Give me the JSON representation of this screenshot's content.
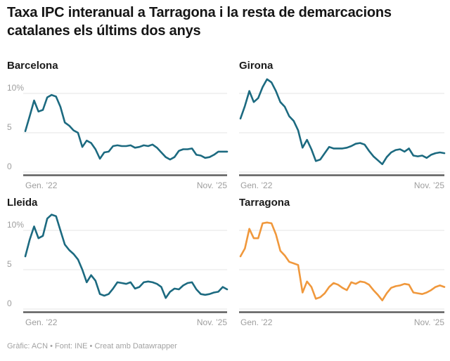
{
  "page": {
    "title": "Taxa IPC interanual a Tarragona i la resta de demarcacions catalanes els últims dos anys",
    "footer": "Gràfic: ACN • Font: INE • Creat amb Datawrapper"
  },
  "chart_data": {
    "type": "line",
    "layout": "2x2 small multiples, shared y scale",
    "title": "Taxa IPC interanual a Tarragona i la resta de demarcacions catalanes els últims dos anys",
    "x_description": "monthly values, Gener 2022 - Novembre 2025 (47 points per series)",
    "x_first_label": "Gen. ’22",
    "x_last_label": "Nov. ’25",
    "ylim": [
      0,
      12.4
    ],
    "grid": true,
    "y_ticks": [
      {
        "value": 10,
        "label": "10%"
      },
      {
        "value": 5,
        "label": "5"
      },
      {
        "value": 0,
        "label": "0"
      }
    ],
    "colors": {
      "teal": "#1c6a80",
      "orange": "#f0983c"
    },
    "panels": [
      {
        "title": "Barcelona",
        "color": "#1c6a80",
        "y_axis_labels": true,
        "values": [
          5.2,
          7.1,
          9.1,
          7.7,
          7.9,
          9.5,
          9.8,
          9.6,
          8.3,
          6.3,
          5.9,
          5.3,
          5.0,
          3.2,
          4.0,
          3.7,
          2.9,
          1.7,
          2.5,
          2.6,
          3.3,
          3.4,
          3.3,
          3.3,
          3.4,
          3.1,
          3.2,
          3.4,
          3.3,
          3.5,
          3.1,
          2.5,
          1.9,
          1.6,
          1.9,
          2.7,
          2.9,
          2.9,
          3.0,
          2.2,
          2.1,
          1.8,
          1.9,
          2.2,
          2.6,
          2.6,
          2.6
        ]
      },
      {
        "title": "Girona",
        "color": "#1c6a80",
        "y_axis_labels": false,
        "values": [
          6.8,
          8.4,
          10.3,
          8.9,
          9.4,
          10.8,
          11.8,
          11.4,
          10.3,
          8.9,
          8.3,
          7.1,
          6.5,
          5.3,
          3.1,
          4.1,
          2.9,
          1.4,
          1.6,
          2.4,
          3.2,
          3.0,
          3.0,
          3.0,
          3.1,
          3.3,
          3.6,
          3.7,
          3.5,
          2.7,
          2.0,
          1.5,
          1.0,
          1.9,
          2.5,
          2.8,
          2.9,
          2.6,
          3.0,
          2.1,
          2.0,
          2.1,
          1.8,
          2.2,
          2.4,
          2.5,
          2.4
        ]
      },
      {
        "title": "Lleida",
        "color": "#1c6a80",
        "y_axis_labels": true,
        "values": [
          6.7,
          8.8,
          10.5,
          9.0,
          9.3,
          11.5,
          12.0,
          11.8,
          10.0,
          8.2,
          7.5,
          7.0,
          6.3,
          5.0,
          3.4,
          4.3,
          3.6,
          1.9,
          1.7,
          1.9,
          2.6,
          3.4,
          3.3,
          3.2,
          3.4,
          2.6,
          2.8,
          3.4,
          3.5,
          3.4,
          3.2,
          2.8,
          1.4,
          2.2,
          2.6,
          2.5,
          3.0,
          3.3,
          3.4,
          2.5,
          1.9,
          1.8,
          1.9,
          2.1,
          2.2,
          2.8,
          2.5
        ]
      },
      {
        "title": "Tarragona",
        "color": "#f0983c",
        "y_axis_labels": false,
        "values": [
          6.7,
          7.7,
          10.2,
          9.0,
          9.0,
          10.9,
          11.0,
          10.9,
          9.5,
          7.4,
          6.8,
          6.0,
          5.8,
          5.6,
          2.1,
          3.5,
          2.8,
          1.3,
          1.5,
          2.0,
          2.8,
          3.3,
          3.1,
          2.7,
          2.4,
          3.4,
          3.2,
          3.5,
          3.4,
          3.1,
          2.4,
          1.8,
          1.1,
          2.0,
          2.7,
          2.9,
          3.0,
          3.2,
          3.1,
          2.1,
          2.0,
          1.9,
          2.1,
          2.4,
          2.8,
          3.0,
          2.8
        ]
      }
    ]
  }
}
